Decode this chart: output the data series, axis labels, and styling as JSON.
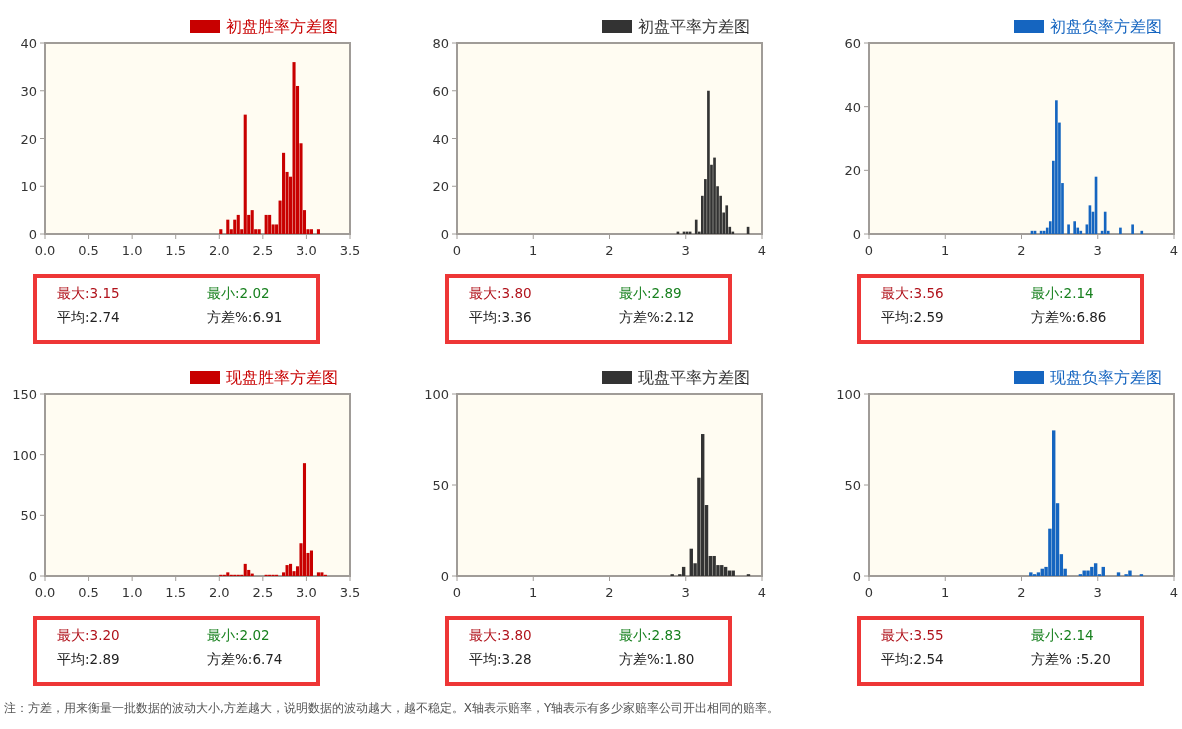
{
  "chart_data": [
    {
      "type": "histogram",
      "legend": "top right",
      "xlim": [
        0,
        3.5
      ],
      "ylim": [
        0,
        40
      ],
      "xticks": [
        {
          "value": 0,
          "label": "0.0"
        },
        0.5,
        {
          "value": 1,
          "label": "1.0"
        },
        1.5,
        {
          "value": 2,
          "label": "2.0"
        },
        2.5,
        {
          "value": 3,
          "label": "3.0"
        },
        3.5
      ],
      "yticks": [
        0,
        10,
        20,
        30,
        40
      ],
      "bins": [
        2,
        2.04,
        2.08,
        2.12,
        2.16,
        2.2,
        2.24,
        2.28,
        2.32,
        2.36,
        2.4,
        2.44,
        2.48,
        2.52,
        2.56,
        2.6,
        2.64,
        2.68,
        2.72,
        2.76,
        2.8,
        2.84,
        2.88,
        2.92,
        2.96,
        3,
        3.04,
        3.08,
        3.12,
        3.16
      ],
      "series": [
        {
          "name": "初盘胜率方差图",
          "color": "#c80000",
          "values": [
            1,
            0,
            3,
            1,
            3,
            4,
            1,
            25,
            4,
            5,
            1,
            1,
            0,
            4,
            4,
            2,
            2,
            7,
            17,
            13,
            12,
            36,
            31,
            19,
            5,
            1,
            1,
            0,
            1
          ]
        }
      ],
      "annotations": [
        "最大:3.15",
        "最小:2.02",
        "平均:2.74",
        "方差%:6.91"
      ]
    },
    {
      "type": "histogram",
      "legend": "top right",
      "xlim": [
        0,
        4
      ],
      "ylim": [
        0,
        80
      ],
      "xticks": [
        0,
        1,
        2,
        3,
        4
      ],
      "yticks": [
        0,
        20,
        40,
        60,
        80
      ],
      "bins": [
        2.88,
        2.92,
        2.96,
        3,
        3.04,
        3.08,
        3.12,
        3.16,
        3.2,
        3.24,
        3.28,
        3.32,
        3.36,
        3.4,
        3.44,
        3.48,
        3.52,
        3.56,
        3.6,
        3.64,
        3.68,
        3.72,
        3.76,
        3.8,
        3.84
      ],
      "series": [
        {
          "name": "初盘平率方差图",
          "color": "#333333",
          "values": [
            1,
            0,
            1,
            1,
            1,
            0,
            6,
            1,
            16,
            23,
            60,
            29,
            32,
            20,
            16,
            9,
            12,
            3,
            1,
            0,
            0,
            0,
            0,
            3
          ]
        }
      ],
      "annotations": [
        "最大:3.80",
        "最小:2.89",
        "平均:3.36",
        "方差%:2.12"
      ]
    },
    {
      "type": "histogram",
      "legend": "top right",
      "xlim": [
        0,
        4
      ],
      "ylim": [
        0,
        60
      ],
      "xticks": [
        0,
        1,
        2,
        3,
        4
      ],
      "yticks": [
        0,
        20,
        40,
        60
      ],
      "bins": [
        2.12,
        2.16,
        2.2,
        2.24,
        2.28,
        2.32,
        2.36,
        2.4,
        2.44,
        2.48,
        2.52,
        2.56,
        2.6,
        2.64,
        2.68,
        2.72,
        2.76,
        2.8,
        2.84,
        2.88,
        2.92,
        2.96,
        3,
        3.04,
        3.08,
        3.12,
        3.16,
        3.2,
        3.24,
        3.28,
        3.32,
        3.36,
        3.4,
        3.44,
        3.48,
        3.52,
        3.56,
        3.6
      ],
      "series": [
        {
          "name": "初盘负率方差图",
          "color": "#1565c0",
          "values": [
            1,
            1,
            0,
            1,
            1,
            2,
            4,
            23,
            42,
            35,
            16,
            0,
            3,
            0,
            4,
            2,
            1,
            0,
            3,
            9,
            7,
            18,
            0,
            1,
            7,
            1,
            0,
            0,
            0,
            2,
            0,
            0,
            0,
            3,
            0,
            0,
            1
          ]
        }
      ],
      "annotations": [
        "最大:3.56",
        "最小:2.14",
        "平均:2.59",
        "方差%:6.86"
      ]
    },
    {
      "type": "histogram",
      "legend": "top right",
      "xlim": [
        0,
        3.5
      ],
      "ylim": [
        0,
        150
      ],
      "xticks": [
        {
          "value": 0,
          "label": "0.0"
        },
        0.5,
        {
          "value": 1,
          "label": "1.0"
        },
        1.5,
        {
          "value": 2,
          "label": "2.0"
        },
        2.5,
        {
          "value": 3,
          "label": "3.0"
        },
        3.5
      ],
      "yticks": [
        0,
        50,
        100,
        150
      ],
      "bins": [
        2,
        2.04,
        2.08,
        2.12,
        2.16,
        2.2,
        2.24,
        2.28,
        2.32,
        2.36,
        2.4,
        2.44,
        2.48,
        2.52,
        2.56,
        2.6,
        2.64,
        2.68,
        2.72,
        2.76,
        2.8,
        2.84,
        2.88,
        2.92,
        2.96,
        3,
        3.04,
        3.08,
        3.12,
        3.16,
        3.2,
        3.24
      ],
      "series": [
        {
          "name": "现盘胜率方差图",
          "color": "#c80000",
          "values": [
            1,
            1,
            3,
            1,
            1,
            1,
            1,
            10,
            5,
            2,
            0,
            0,
            0,
            1,
            1,
            1,
            1,
            0,
            3,
            9,
            10,
            4,
            8,
            27,
            93,
            19,
            21,
            0,
            3,
            3,
            1
          ]
        }
      ],
      "annotations": [
        "最大:3.20",
        "最小:2.02",
        "平均:2.89",
        "方差%:6.74"
      ]
    },
    {
      "type": "histogram",
      "legend": "top right",
      "xlim": [
        0,
        4
      ],
      "ylim": [
        0,
        100
      ],
      "xticks": [
        0,
        1,
        2,
        3,
        4
      ],
      "yticks": [
        0,
        50,
        100
      ],
      "bins": [
        2.8,
        2.85,
        2.9,
        2.95,
        3,
        3.05,
        3.1,
        3.15,
        3.2,
        3.25,
        3.3,
        3.35,
        3.4,
        3.45,
        3.5,
        3.55,
        3.6,
        3.65,
        3.7,
        3.75,
        3.8,
        3.85
      ],
      "series": [
        {
          "name": "现盘平率方差图",
          "color": "#333333",
          "values": [
            1,
            0,
            1,
            5,
            0,
            15,
            7,
            54,
            78,
            39,
            11,
            11,
            6,
            6,
            5,
            3,
            3,
            0,
            0,
            0,
            1
          ]
        }
      ],
      "annotations": [
        "最大:3.80",
        "最小:2.83",
        "平均:3.28",
        "方差%:1.80"
      ]
    },
    {
      "type": "histogram",
      "legend": "top right",
      "xlim": [
        0,
        4
      ],
      "ylim": [
        0,
        100
      ],
      "xticks": [
        0,
        1,
        2,
        3,
        4
      ],
      "yticks": [
        0,
        50,
        100
      ],
      "bins": [
        2.1,
        2.15,
        2.2,
        2.25,
        2.3,
        2.35,
        2.4,
        2.45,
        2.5,
        2.55,
        2.6,
        2.65,
        2.7,
        2.75,
        2.8,
        2.85,
        2.9,
        2.95,
        3,
        3.05,
        3.1,
        3.15,
        3.2,
        3.25,
        3.3,
        3.35,
        3.4,
        3.45,
        3.5,
        3.55,
        3.6
      ],
      "series": [
        {
          "name": "现盘负率方差图",
          "color": "#1565c0",
          "values": [
            2,
            1,
            2,
            4,
            5,
            26,
            80,
            40,
            12,
            4,
            0,
            0,
            0,
            1,
            3,
            3,
            5,
            7,
            1,
            5,
            0,
            0,
            0,
            2,
            0,
            1,
            3,
            0,
            0,
            1
          ]
        }
      ],
      "annotations": [
        "最大:3.55",
        "最小:2.14",
        "平均:2.54",
        "方差% :5.20"
      ]
    },
    {
      "type": "other",
      "annotations": [
        "注：方差，用来衡量一批数据的波动大小,方差越大，说明数据的波动越大，越不稳定。X轴表示赔率，Y轴表示有多少家赔率公司开出相同的赔率。"
      ]
    }
  ]
}
